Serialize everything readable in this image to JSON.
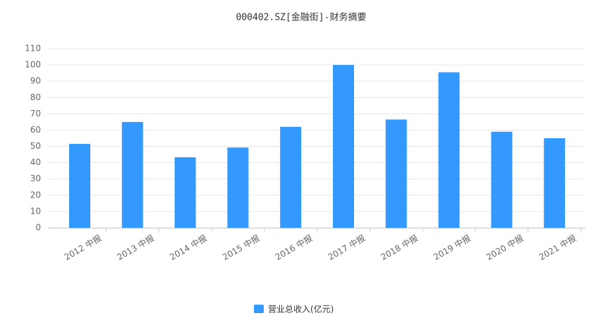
{
  "chart_data": {
    "type": "bar",
    "title": "000402.SZ[金融街]-财务摘要",
    "categories": [
      "2012 中报",
      "2013 中报",
      "2014 中报",
      "2015 中报",
      "2016 中报",
      "2017 中报",
      "2018 中报",
      "2019 中报",
      "2020 中报",
      "2021 中报"
    ],
    "series": [
      {
        "name": "营业总收入(亿元)",
        "color": "#3399ff",
        "values": [
          51.5,
          65,
          43.3,
          49.3,
          62,
          100,
          66.5,
          95.5,
          59,
          55
        ]
      }
    ],
    "ylim": [
      0,
      110
    ],
    "yticks": [
      0,
      10,
      20,
      30,
      40,
      50,
      60,
      70,
      80,
      90,
      100,
      110
    ],
    "grid": true
  }
}
